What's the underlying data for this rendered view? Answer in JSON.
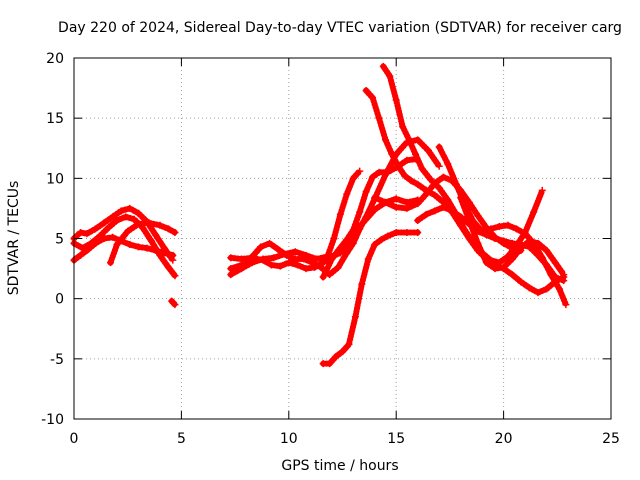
{
  "chart_data": {
    "type": "scatter",
    "title": "Day 220 of 2024, Sidereal Day-to-day VTEC variation (SDTVAR) for receiver carg",
    "xlabel": "GPS time / hours",
    "ylabel": "SDTVAR / TECUs",
    "xlim": [
      0,
      25
    ],
    "ylim": [
      -10,
      20
    ],
    "xticks": [
      0,
      5,
      10,
      15,
      20,
      25
    ],
    "yticks": [
      -10,
      -5,
      0,
      5,
      10,
      15,
      20
    ],
    "grid": true,
    "marker": "plus",
    "color": "#ff0000",
    "series": [
      {
        "name": "s1",
        "x": [
          0.0,
          0.3,
          0.6,
          1.0,
          1.4,
          1.8,
          2.2,
          2.6,
          3.0,
          3.4,
          3.8,
          4.2,
          4.6
        ],
        "y": [
          5.0,
          5.5,
          5.4,
          5.8,
          6.3,
          6.8,
          7.3,
          7.5,
          7.1,
          6.4,
          5.3,
          4.2,
          3.2
        ]
      },
      {
        "name": "s2",
        "x": [
          0.0,
          0.4,
          0.8,
          1.2,
          1.6,
          2.0,
          2.4,
          2.8,
          3.2,
          3.6,
          4.0,
          4.4,
          4.7
        ],
        "y": [
          4.6,
          4.2,
          4.6,
          5.2,
          5.9,
          6.5,
          6.8,
          6.6,
          5.9,
          4.8,
          3.6,
          2.6,
          1.9
        ]
      },
      {
        "name": "s3",
        "x": [
          0.0,
          0.3,
          0.6,
          1.0,
          1.4,
          1.8,
          2.2,
          2.6,
          3.0,
          3.4,
          3.8,
          4.2,
          4.6
        ],
        "y": [
          3.2,
          3.6,
          4.0,
          4.6,
          5.0,
          5.1,
          4.8,
          4.5,
          4.3,
          4.2,
          4.0,
          3.8,
          3.6
        ]
      },
      {
        "name": "s4",
        "x": [
          1.7,
          2.0,
          2.5,
          3.0,
          3.5,
          4.0,
          4.4,
          4.7
        ],
        "y": [
          3.0,
          4.5,
          5.6,
          6.2,
          6.3,
          6.1,
          5.8,
          5.5
        ]
      },
      {
        "name": "s5",
        "x": [
          4.55,
          4.7
        ],
        "y": [
          -0.2,
          -0.5
        ]
      },
      {
        "name": "s6",
        "x": [
          7.3,
          7.8,
          8.3,
          8.8,
          9.2,
          9.6,
          10.0,
          10.4,
          10.8,
          11.2,
          11.6,
          12.0,
          12.4,
          12.8,
          13.2,
          13.6,
          14.0,
          14.5,
          15.0,
          15.5,
          16.0
        ],
        "y": [
          3.4,
          3.3,
          3.4,
          3.2,
          2.8,
          2.7,
          3.0,
          2.8,
          2.5,
          2.6,
          3.0,
          3.5,
          3.8,
          4.8,
          5.8,
          6.6,
          7.4,
          8.0,
          8.3,
          8.0,
          8.2
        ]
      },
      {
        "name": "s7",
        "x": [
          7.3,
          7.8,
          8.3,
          8.7,
          9.1,
          9.5,
          9.9,
          10.3,
          10.7,
          11.1,
          11.5,
          11.9,
          12.3,
          12.7,
          13.0,
          13.3,
          13.6,
          14.0,
          14.5,
          15.0,
          15.5,
          16.0,
          16.5,
          17.0
        ],
        "y": [
          2.5,
          2.8,
          3.5,
          4.3,
          4.6,
          4.1,
          3.6,
          3.3,
          3.3,
          3.0,
          2.6,
          2.0,
          2.6,
          3.8,
          4.6,
          5.8,
          6.8,
          8.3,
          10.3,
          12.0,
          13.0,
          13.2,
          12.3,
          11.0
        ]
      },
      {
        "name": "s8",
        "x": [
          7.3,
          7.8,
          8.3,
          8.8,
          9.3,
          9.8,
          10.3,
          10.8,
          11.3,
          11.8,
          12.1,
          12.4,
          12.7,
          13.0,
          13.3
        ],
        "y": [
          2.0,
          2.5,
          3.0,
          3.3,
          3.4,
          3.7,
          3.9,
          3.6,
          3.3,
          3.5,
          5.0,
          7.0,
          8.7,
          10.0,
          10.6
        ]
      },
      {
        "name": "s9",
        "x": [
          11.6,
          12.0,
          12.3,
          12.7,
          13.0,
          13.3,
          13.6,
          13.9,
          14.2,
          14.6,
          15.0,
          15.5,
          15.9
        ],
        "y": [
          1.8,
          3.3,
          4.0,
          4.9,
          5.7,
          7.2,
          8.9,
          10.1,
          10.5,
          10.5,
          10.9,
          11.5,
          11.6
        ]
      },
      {
        "name": "s10",
        "x": [
          11.6,
          11.9,
          12.2,
          12.5,
          12.8,
          13.1,
          13.4,
          13.7,
          14.0,
          14.3,
          14.6,
          15.0,
          15.5,
          16.0
        ],
        "y": [
          -5.4,
          -5.4,
          -4.8,
          -4.4,
          -3.8,
          -1.5,
          1.2,
          3.3,
          4.5,
          4.9,
          5.2,
          5.5,
          5.5,
          5.5
        ]
      },
      {
        "name": "s11",
        "x": [
          13.6,
          13.9,
          14.2,
          14.5,
          14.8,
          15.1,
          15.4,
          15.7,
          16.0,
          16.4,
          16.8,
          17.2,
          17.6,
          18.0,
          18.4,
          18.8,
          19.2,
          19.6,
          20.0,
          20.4,
          20.8,
          21.2,
          21.6,
          22.0,
          22.4,
          22.8
        ],
        "y": [
          17.3,
          16.7,
          15.0,
          13.2,
          12.0,
          11.0,
          10.2,
          9.8,
          9.5,
          9.0,
          8.6,
          8.0,
          7.2,
          6.1,
          5.0,
          4.0,
          3.3,
          2.8,
          2.5,
          2.0,
          1.4,
          0.9,
          0.5,
          0.8,
          1.4,
          1.8
        ]
      },
      {
        "name": "s12",
        "x": [
          14.4,
          14.7,
          15.0,
          15.3,
          15.6,
          15.9,
          16.2,
          16.6,
          17.0,
          17.4,
          17.8,
          18.2,
          18.6,
          19.0,
          19.4,
          19.8,
          20.2,
          20.6,
          21.0,
          21.4,
          21.8
        ],
        "y": [
          19.3,
          18.5,
          16.5,
          14.3,
          13.2,
          12.0,
          10.8,
          9.9,
          9.2,
          8.2,
          7.0,
          5.7,
          4.6,
          3.8,
          3.2,
          3.0,
          3.5,
          4.4,
          5.5,
          7.2,
          9.0
        ]
      },
      {
        "name": "s13",
        "x": [
          14.0,
          14.5,
          15.0,
          15.5,
          16.0,
          16.4,
          16.8,
          17.2,
          17.6,
          18.0,
          18.4,
          18.8,
          19.2,
          19.6,
          20.0,
          20.4,
          20.8
        ],
        "y": [
          8.4,
          8.0,
          7.6,
          7.5,
          7.9,
          8.7,
          9.6,
          10.1,
          9.8,
          9.0,
          8.0,
          6.9,
          5.9,
          5.1,
          4.6,
          4.2,
          4.0
        ]
      },
      {
        "name": "s14",
        "x": [
          16.0,
          16.4,
          16.8,
          17.2,
          17.6,
          18.0,
          18.4,
          18.8,
          19.2,
          19.6,
          20.0,
          20.4,
          20.8,
          21.2,
          21.6,
          22.0,
          22.4,
          22.8
        ],
        "y": [
          6.5,
          7.0,
          7.3,
          7.6,
          7.3,
          6.8,
          6.2,
          5.6,
          5.3,
          5.0,
          4.8,
          4.6,
          4.5,
          4.3,
          3.6,
          2.8,
          1.8,
          1.5
        ]
      },
      {
        "name": "s15",
        "x": [
          17.0,
          17.4,
          17.8,
          18.2,
          18.6,
          19.0,
          19.4,
          19.8,
          20.2,
          20.6,
          21.0,
          21.4,
          21.8,
          22.2,
          22.6,
          22.9
        ],
        "y": [
          12.6,
          11.2,
          9.5,
          7.8,
          6.4,
          5.6,
          5.8,
          6.0,
          6.1,
          5.8,
          5.4,
          4.6,
          3.4,
          2.0,
          0.8,
          -0.5
        ]
      },
      {
        "name": "s16",
        "x": [
          18.0,
          18.4,
          18.8,
          19.2,
          19.6,
          20.0,
          20.4,
          20.8,
          21.2,
          21.6,
          22.0,
          22.4,
          22.8
        ],
        "y": [
          8.4,
          6.5,
          4.6,
          3.0,
          2.5,
          2.6,
          3.3,
          4.2,
          4.8,
          4.6,
          4.0,
          3.0,
          2.0
        ]
      }
    ]
  }
}
